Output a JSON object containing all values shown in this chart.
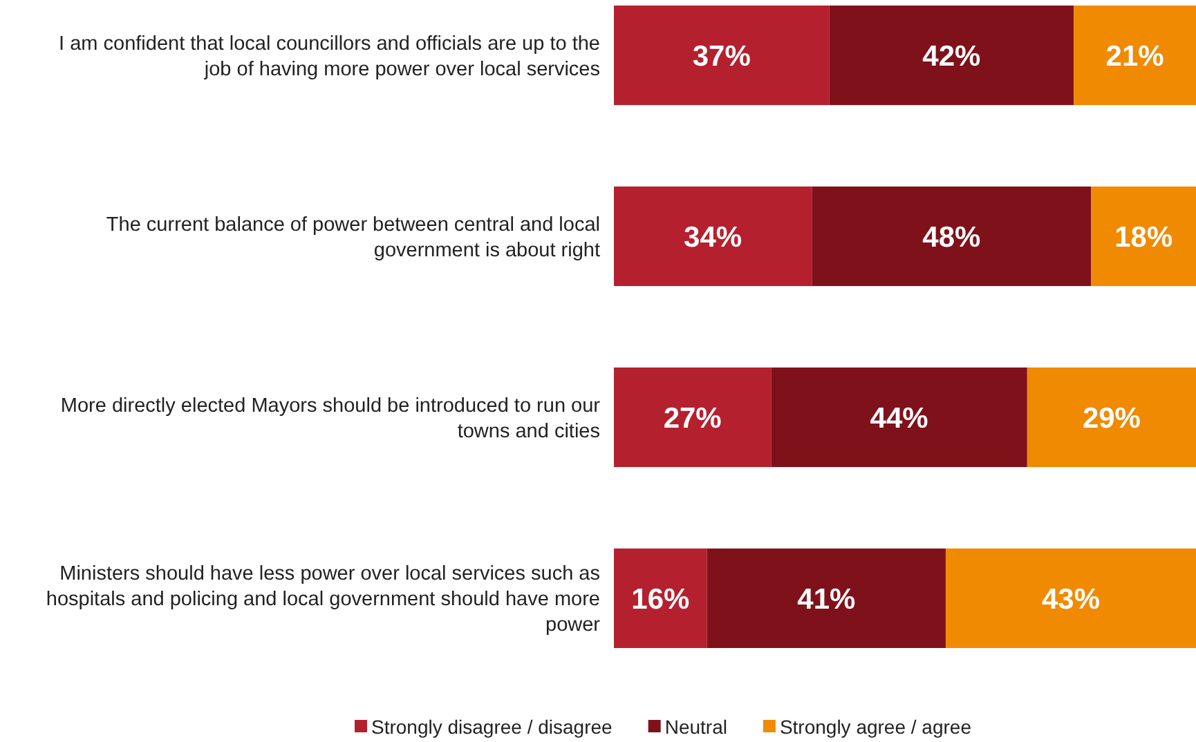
{
  "chart_data": {
    "type": "bar",
    "orientation": "horizontal",
    "stacked": true,
    "categories": [
      "I am confident that local councillors and officials are up to the job of having more power over local services",
      "The current balance of power between central and local government is about right",
      "More directly elected Mayors should be introduced to run our towns and cities",
      "Ministers should have less power over local services such as hospitals and policing and local government should have more power"
    ],
    "series": [
      {
        "name": "Strongly disagree / disagree",
        "color": "#b5202e",
        "values": [
          37,
          34,
          27,
          16
        ],
        "value_labels": [
          "37%",
          "34%",
          "27%",
          "16%"
        ]
      },
      {
        "name": "Neutral",
        "color": "#7f111b",
        "values": [
          42,
          48,
          44,
          41
        ],
        "value_labels": [
          "42%",
          "48%",
          "44%",
          "41%"
        ]
      },
      {
        "name": "Strongly agree / agree",
        "color": "#f08a00",
        "values": [
          21,
          18,
          29,
          43
        ],
        "value_labels": [
          "21%",
          "18%",
          "29%",
          "43%"
        ]
      }
    ],
    "xlim": [
      0,
      100
    ],
    "legend": "bottom",
    "grid": false
  }
}
